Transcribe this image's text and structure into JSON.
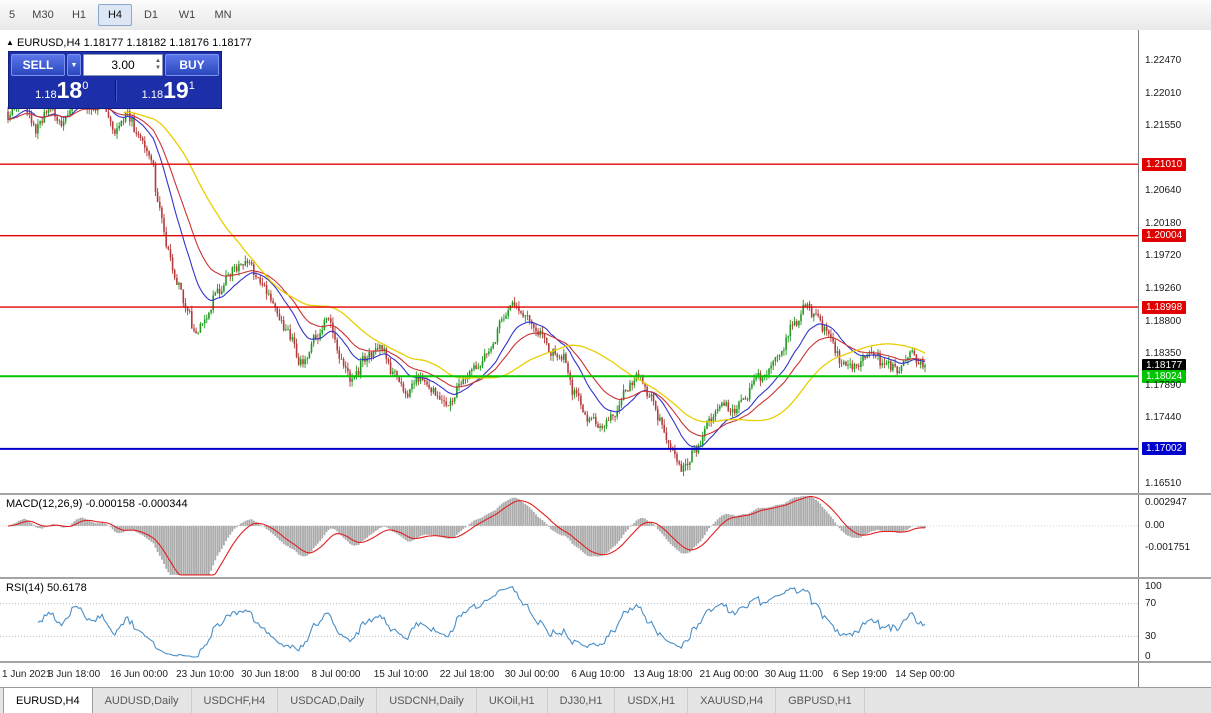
{
  "toolbar": {
    "timeframes": [
      {
        "label": "5",
        "active": false
      },
      {
        "label": "M30",
        "active": false
      },
      {
        "label": "H1",
        "active": false
      },
      {
        "label": "H4",
        "active": true
      },
      {
        "label": "D1",
        "active": false
      },
      {
        "label": "W1",
        "active": false
      },
      {
        "label": "MN",
        "active": false
      }
    ]
  },
  "symbol_line": {
    "marker": "▲",
    "symbol": "EURUSD,H4",
    "ohlc": "1.18177 1.18182 1.18176 1.18177"
  },
  "trade_panel": {
    "sell_label": "SELL",
    "buy_label": "BUY",
    "volume": "3.00",
    "down_arrow": "▼",
    "up_arrow_small": "▲",
    "down_arrow_small": "▼",
    "bid": {
      "prefix": "1.18",
      "big": "18",
      "sup": "0"
    },
    "ask": {
      "prefix": "1.18",
      "big": "19",
      "sup": "1"
    }
  },
  "indicators": {
    "macd_label": "MACD(12,26,9) -0.000158 -0.000344",
    "rsi_label": "RSI(14) 50.6178"
  },
  "axes": {
    "price_ticks": [
      {
        "label": "1.22470",
        "value": 1.2247,
        "type": "plain"
      },
      {
        "label": "1.22010",
        "value": 1.2201,
        "type": "plain"
      },
      {
        "label": "1.21550",
        "value": 1.2155,
        "type": "plain"
      },
      {
        "label": "1.21010",
        "value": 1.2101,
        "type": "red"
      },
      {
        "label": "1.20640",
        "value": 1.2064,
        "type": "plain"
      },
      {
        "label": "1.20180",
        "value": 1.2018,
        "type": "plain"
      },
      {
        "label": "1.20004",
        "value": 1.20004,
        "type": "red"
      },
      {
        "label": "1.19720",
        "value": 1.1972,
        "type": "plain"
      },
      {
        "label": "1.19260",
        "value": 1.1926,
        "type": "plain"
      },
      {
        "label": "1.18998",
        "value": 1.18998,
        "type": "red"
      },
      {
        "label": "1.18800",
        "value": 1.188,
        "type": "plain"
      },
      {
        "label": "1.18350",
        "value": 1.1835,
        "type": "plain"
      },
      {
        "label": "1.18177",
        "value": 1.18177,
        "type": "black"
      },
      {
        "label": "1.18024",
        "value": 1.18024,
        "type": "green"
      },
      {
        "label": "1.17890",
        "value": 1.1789,
        "type": "plain"
      },
      {
        "label": "1.17440",
        "value": 1.1744,
        "type": "plain"
      },
      {
        "label": "1.17002",
        "value": 1.17002,
        "type": "blue"
      },
      {
        "label": "1.16510",
        "value": 1.1651,
        "type": "plain"
      }
    ],
    "macd_ticks": [
      {
        "label": "0.002947",
        "pos": "top"
      },
      {
        "label": "0.00",
        "pos": "zero"
      },
      {
        "label": "-0.001751",
        "pos": "low",
        "value": -0.001751
      }
    ],
    "rsi_ticks": [
      {
        "label": "100",
        "value": 100
      },
      {
        "label": "70",
        "value": 70
      },
      {
        "label": "30",
        "value": 30
      },
      {
        "label": "0",
        "value": 0
      }
    ],
    "time_labels": [
      "1 Jun 2021",
      "8 Jun 18:00",
      "16 Jun 00:00",
      "23 Jun 10:00",
      "30 Jun 18:00",
      "8 Jul 00:00",
      "15 Jul 10:00",
      "22 Jul 18:00",
      "30 Jul 00:00",
      "6 Aug 10:00",
      "13 Aug 18:00",
      "21 Aug 00:00",
      "30 Aug 11:00",
      "6 Sep 19:00",
      "14 Sep 00:00"
    ]
  },
  "tabs": [
    {
      "label": "EURUSD,H4",
      "active": true
    },
    {
      "label": "AUDUSD,Daily",
      "active": false
    },
    {
      "label": "USDCHF,H4",
      "active": false
    },
    {
      "label": "USDCAD,Daily",
      "active": false
    },
    {
      "label": "USDCNH,Daily",
      "active": false
    },
    {
      "label": "UKOil,H1",
      "active": false
    },
    {
      "label": "DJ30,H1",
      "active": false
    },
    {
      "label": "USDX,H1",
      "active": false
    },
    {
      "label": "XAUUSD,H4",
      "active": false
    },
    {
      "label": "GBPUSD,H1",
      "active": false
    }
  ],
  "chart_data": {
    "type": "candlestick",
    "symbol": "EURUSD",
    "timeframe": "H4",
    "current_ohlc": [
      1.18177,
      1.18182,
      1.18176,
      1.18177
    ],
    "last_price": 1.18177,
    "bid": 1.1818,
    "ask": 1.18191,
    "x_range": [
      "1 Jun 2021",
      "14 Sep 2021"
    ],
    "y_range": [
      1.1638,
      1.229
    ],
    "levels": {
      "red": [
        1.2101,
        1.20004,
        1.18998
      ],
      "green": 1.18024,
      "blue": 1.17002
    },
    "num_candles": 430,
    "price_path_anchors": [
      [
        0.0,
        1.217
      ],
      [
        0.015,
        1.2192
      ],
      [
        0.03,
        1.215
      ],
      [
        0.045,
        1.2178
      ],
      [
        0.06,
        1.216
      ],
      [
        0.075,
        1.2205
      ],
      [
        0.09,
        1.218
      ],
      [
        0.105,
        1.2185
      ],
      [
        0.115,
        1.215
      ],
      [
        0.13,
        1.217
      ],
      [
        0.145,
        1.2135
      ],
      [
        0.155,
        1.2115
      ],
      [
        0.165,
        1.204
      ],
      [
        0.175,
        1.1975
      ],
      [
        0.185,
        1.193
      ],
      [
        0.195,
        1.1895
      ],
      [
        0.205,
        1.1862
      ],
      [
        0.215,
        1.1888
      ],
      [
        0.23,
        1.1925
      ],
      [
        0.245,
        1.195
      ],
      [
        0.26,
        1.1965
      ],
      [
        0.275,
        1.1938
      ],
      [
        0.29,
        1.1902
      ],
      [
        0.305,
        1.1862
      ],
      [
        0.32,
        1.182
      ],
      [
        0.335,
        1.1858
      ],
      [
        0.35,
        1.1882
      ],
      [
        0.362,
        1.1825
      ],
      [
        0.375,
        1.1795
      ],
      [
        0.39,
        1.1828
      ],
      [
        0.405,
        1.1845
      ],
      [
        0.42,
        1.1808
      ],
      [
        0.435,
        1.1778
      ],
      [
        0.45,
        1.1802
      ],
      [
        0.465,
        1.1782
      ],
      [
        0.48,
        1.1762
      ],
      [
        0.495,
        1.1792
      ],
      [
        0.51,
        1.1812
      ],
      [
        0.525,
        1.1842
      ],
      [
        0.54,
        1.188
      ],
      [
        0.552,
        1.1905
      ],
      [
        0.565,
        1.1888
      ],
      [
        0.58,
        1.1862
      ],
      [
        0.592,
        1.1838
      ],
      [
        0.605,
        1.1828
      ],
      [
        0.618,
        1.1778
      ],
      [
        0.632,
        1.1745
      ],
      [
        0.648,
        1.1732
      ],
      [
        0.66,
        1.1748
      ],
      [
        0.675,
        1.1785
      ],
      [
        0.688,
        1.1802
      ],
      [
        0.7,
        1.1775
      ],
      [
        0.712,
        1.1738
      ],
      [
        0.724,
        1.17
      ],
      [
        0.737,
        1.1672
      ],
      [
        0.75,
        1.17
      ],
      [
        0.765,
        1.1742
      ],
      [
        0.778,
        1.1765
      ],
      [
        0.79,
        1.1752
      ],
      [
        0.803,
        1.1772
      ],
      [
        0.817,
        1.18
      ],
      [
        0.83,
        1.1812
      ],
      [
        0.843,
        1.184
      ],
      [
        0.856,
        1.1875
      ],
      [
        0.87,
        1.1902
      ],
      [
        0.882,
        1.1885
      ],
      [
        0.895,
        1.1858
      ],
      [
        0.91,
        1.1822
      ],
      [
        0.925,
        1.1815
      ],
      [
        0.94,
        1.1842
      ],
      [
        0.955,
        1.182
      ],
      [
        0.97,
        1.1812
      ],
      [
        0.985,
        1.1832
      ],
      [
        1.0,
        1.18177
      ]
    ],
    "indicators": {
      "macd": {
        "params": "12,26,9",
        "values": [
          -0.000158,
          -0.000344
        ],
        "scale": [
          0.002947,
          -0.001751
        ]
      },
      "rsi": {
        "params": "14",
        "value": 50.6178,
        "levels": [
          70,
          30
        ]
      },
      "moving_averages": [
        {
          "type": "ema",
          "period": 18,
          "color": "#3333cc"
        },
        {
          "type": "ema",
          "period": 32,
          "color": "#cc3333"
        },
        {
          "type": "sma",
          "period": 55,
          "color": "#e8cf00"
        }
      ]
    },
    "colors": {
      "up": "#1f9a1f",
      "down": "#b43b3b",
      "ma_fast": "#3333cc",
      "ma_mid": "#cc3333",
      "ma_slow": "#e8cf00",
      "macd_hist": "#ababab",
      "macd_signal": "#e02020",
      "rsi": "#4a8fc7",
      "level_red": "#e00000",
      "level_green": "#00c400",
      "level_blue": "#0000cc",
      "last_price_label": "#000000"
    }
  }
}
